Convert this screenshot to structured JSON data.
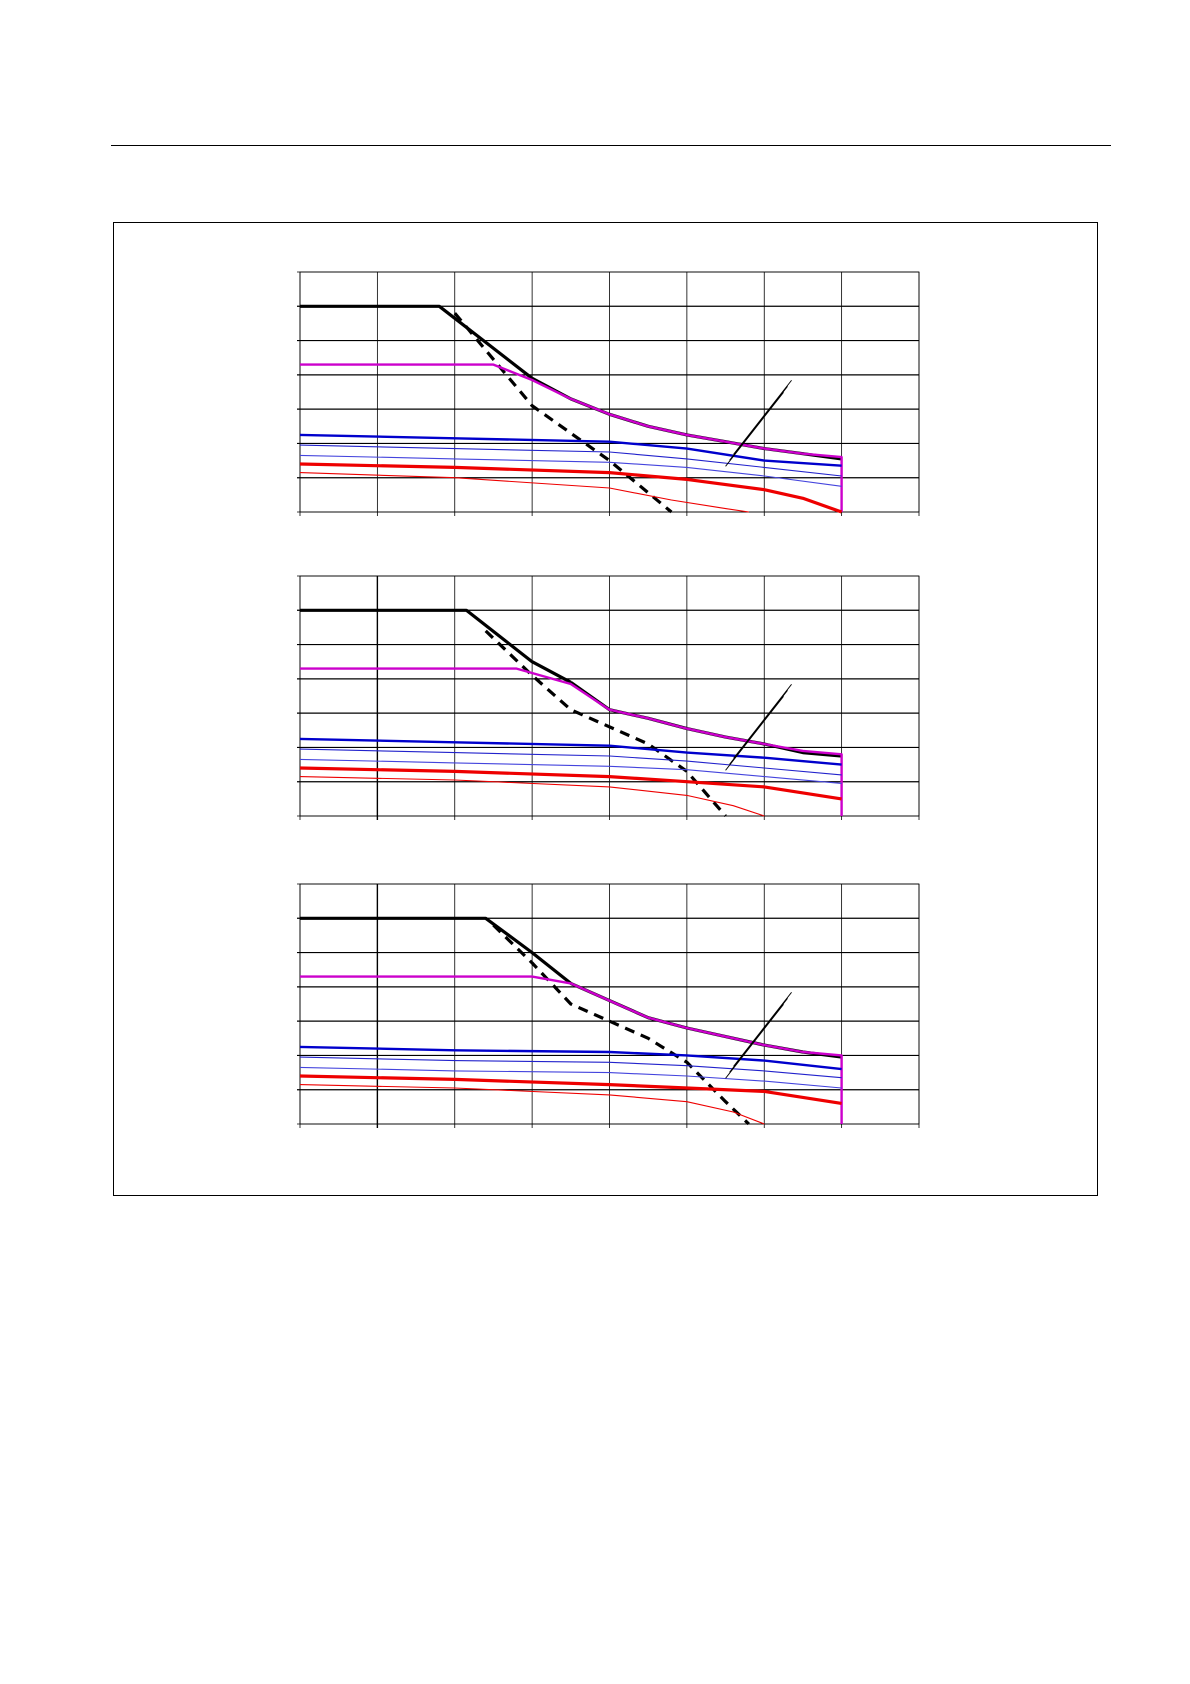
{
  "chart_data": [
    {
      "type": "line",
      "xlim": [
        0,
        8
      ],
      "ylim": [
        0,
        7
      ],
      "grid": true,
      "series": [
        {
          "color": "#000000",
          "width": "thick",
          "dash": "solid",
          "x": [
            0,
            1.8,
            3
          ],
          "y": [
            6,
            6,
            3.9
          ]
        },
        {
          "color": "#000000",
          "width": "thick",
          "dash": "dashed",
          "x": [
            2,
            3,
            4,
            4.8
          ],
          "y": [
            5.8,
            3.1,
            1.5,
            0
          ]
        },
        {
          "color": "#000000",
          "width": "thick",
          "dash": "solid",
          "x": [
            3,
            3.5,
            4,
            4.5,
            5,
            5.5,
            6,
            6.5,
            7
          ],
          "y": [
            3.9,
            3.3,
            2.85,
            2.5,
            2.25,
            2.05,
            1.85,
            1.7,
            1.55
          ]
        },
        {
          "color": "#cc00cc",
          "width": "medium",
          "dash": "solid",
          "x": [
            0,
            2.5,
            3,
            3.5,
            4,
            4.5,
            5,
            5.5,
            6,
            6.5,
            7,
            7
          ],
          "y": [
            4.3,
            4.3,
            3.85,
            3.3,
            2.85,
            2.5,
            2.25,
            2.05,
            1.85,
            1.7,
            1.6,
            0
          ]
        },
        {
          "color": "#0000cc",
          "width": "medium",
          "dash": "solid",
          "x": [
            0,
            2,
            4,
            5,
            6,
            7
          ],
          "y": [
            2.25,
            2.15,
            2.05,
            1.85,
            1.5,
            1.35
          ]
        },
        {
          "color": "#2222cc",
          "width": "thin",
          "dash": "solid",
          "x": [
            0,
            2,
            4,
            5,
            6,
            7
          ],
          "y": [
            1.95,
            1.85,
            1.75,
            1.55,
            1.3,
            1.05
          ]
        },
        {
          "color": "#4444dd",
          "width": "thin",
          "dash": "solid",
          "x": [
            0,
            2,
            4,
            5,
            6,
            7
          ],
          "y": [
            1.65,
            1.55,
            1.45,
            1.3,
            1.05,
            0.75
          ]
        },
        {
          "color": "#ee0000",
          "width": "thick",
          "dash": "solid",
          "x": [
            0,
            2,
            4,
            5,
            6,
            6.5,
            7
          ],
          "y": [
            1.4,
            1.3,
            1.15,
            0.95,
            0.65,
            0.4,
            0
          ]
        },
        {
          "color": "#ee0000",
          "width": "thin",
          "dash": "solid",
          "x": [
            0,
            2,
            4,
            4.8,
            5.5,
            5.8
          ],
          "y": [
            1.15,
            1,
            0.7,
            0.35,
            0.1,
            0
          ]
        }
      ]
    },
    {
      "type": "line",
      "xlim": [
        0,
        8
      ],
      "ylim": [
        0,
        7
      ],
      "grid": true,
      "series": [
        {
          "color": "#000000",
          "width": "thick",
          "dash": "solid",
          "x": [
            0,
            2.15,
            3,
            3.5
          ],
          "y": [
            6,
            6,
            4.5,
            3.9
          ]
        },
        {
          "color": "#000000",
          "width": "thick",
          "dash": "dashed",
          "x": [
            2.4,
            3,
            3.5,
            4.5,
            5,
            5.5
          ],
          "y": [
            5.4,
            4.1,
            3.1,
            2.1,
            1.3,
            0
          ]
        },
        {
          "color": "#000000",
          "width": "thick",
          "dash": "solid",
          "x": [
            3.5,
            4,
            4.5,
            5,
            5.5,
            6,
            6.5,
            7
          ],
          "y": [
            3.9,
            3.1,
            2.85,
            2.55,
            2.3,
            2.1,
            1.85,
            1.75
          ]
        },
        {
          "color": "#cc00cc",
          "width": "medium",
          "dash": "solid",
          "x": [
            0,
            2.8,
            3.5,
            4,
            4.5,
            5,
            5.5,
            6,
            6.5,
            7,
            7
          ],
          "y": [
            4.3,
            4.3,
            3.85,
            3.1,
            2.85,
            2.55,
            2.3,
            2.1,
            1.9,
            1.8,
            0
          ]
        },
        {
          "color": "#0000cc",
          "width": "medium",
          "dash": "solid",
          "x": [
            0,
            2,
            4,
            5,
            6,
            7
          ],
          "y": [
            2.25,
            2.15,
            2.05,
            1.85,
            1.7,
            1.5
          ]
        },
        {
          "color": "#2222cc",
          "width": "thin",
          "dash": "solid",
          "x": [
            0,
            2,
            4,
            5,
            6,
            7
          ],
          "y": [
            1.95,
            1.85,
            1.75,
            1.6,
            1.4,
            1.2
          ]
        },
        {
          "color": "#4444dd",
          "width": "thin",
          "dash": "solid",
          "x": [
            0,
            2,
            4,
            5,
            6,
            7
          ],
          "y": [
            1.65,
            1.55,
            1.45,
            1.35,
            1.15,
            0.95
          ]
        },
        {
          "color": "#ee0000",
          "width": "thick",
          "dash": "solid",
          "x": [
            0,
            2,
            4,
            5,
            6,
            7
          ],
          "y": [
            1.4,
            1.3,
            1.15,
            1.0,
            0.85,
            0.5
          ]
        },
        {
          "color": "#ee0000",
          "width": "thin",
          "dash": "solid",
          "x": [
            0,
            2,
            4,
            5,
            5.6,
            6
          ],
          "y": [
            1.15,
            1.05,
            0.85,
            0.6,
            0.3,
            0
          ]
        }
      ]
    },
    {
      "type": "line",
      "xlim": [
        0,
        8
      ],
      "ylim": [
        0,
        7
      ],
      "grid": true,
      "series": [
        {
          "color": "#000000",
          "width": "thick",
          "dash": "solid",
          "x": [
            0,
            2.4,
            3,
            3.5
          ],
          "y": [
            6,
            6,
            5,
            4.1
          ]
        },
        {
          "color": "#000000",
          "width": "thick",
          "dash": "dashed",
          "x": [
            2.5,
            3,
            3.5,
            4.5,
            5,
            5.5,
            5.8
          ],
          "y": [
            5.8,
            4.7,
            3.5,
            2.5,
            1.8,
            0.65,
            0
          ]
        },
        {
          "color": "#000000",
          "width": "thick",
          "dash": "solid",
          "x": [
            3.5,
            4,
            4.5,
            5,
            5.5,
            6,
            6.5,
            7
          ],
          "y": [
            4.1,
            3.6,
            3.1,
            2.8,
            2.55,
            2.3,
            2.1,
            1.95
          ]
        },
        {
          "color": "#cc00cc",
          "width": "medium",
          "dash": "solid",
          "x": [
            0,
            3,
            3.5,
            4,
            4.5,
            5,
            5.5,
            6,
            6.5,
            7,
            7
          ],
          "y": [
            4.3,
            4.3,
            4.1,
            3.6,
            3.1,
            2.8,
            2.55,
            2.3,
            2.1,
            2.0,
            0
          ]
        },
        {
          "color": "#0000cc",
          "width": "medium",
          "dash": "solid",
          "x": [
            0,
            2,
            4,
            5,
            6,
            7
          ],
          "y": [
            2.25,
            2.15,
            2.1,
            2.0,
            1.85,
            1.6
          ]
        },
        {
          "color": "#2222cc",
          "width": "thin",
          "dash": "solid",
          "x": [
            0,
            2,
            4,
            5,
            6,
            7
          ],
          "y": [
            1.95,
            1.85,
            1.8,
            1.7,
            1.55,
            1.35
          ]
        },
        {
          "color": "#4444dd",
          "width": "thin",
          "dash": "solid",
          "x": [
            0,
            2,
            4,
            5,
            6,
            7
          ],
          "y": [
            1.65,
            1.55,
            1.5,
            1.4,
            1.25,
            1.05
          ]
        },
        {
          "color": "#ee0000",
          "width": "thick",
          "dash": "solid",
          "x": [
            0,
            2,
            4,
            5,
            6,
            7
          ],
          "y": [
            1.4,
            1.3,
            1.15,
            1.05,
            0.95,
            0.6
          ]
        },
        {
          "color": "#ee0000",
          "width": "thin",
          "dash": "solid",
          "x": [
            0,
            2,
            4,
            5,
            5.6,
            6
          ],
          "y": [
            1.15,
            1.05,
            0.85,
            0.65,
            0.35,
            0
          ]
        }
      ]
    }
  ]
}
